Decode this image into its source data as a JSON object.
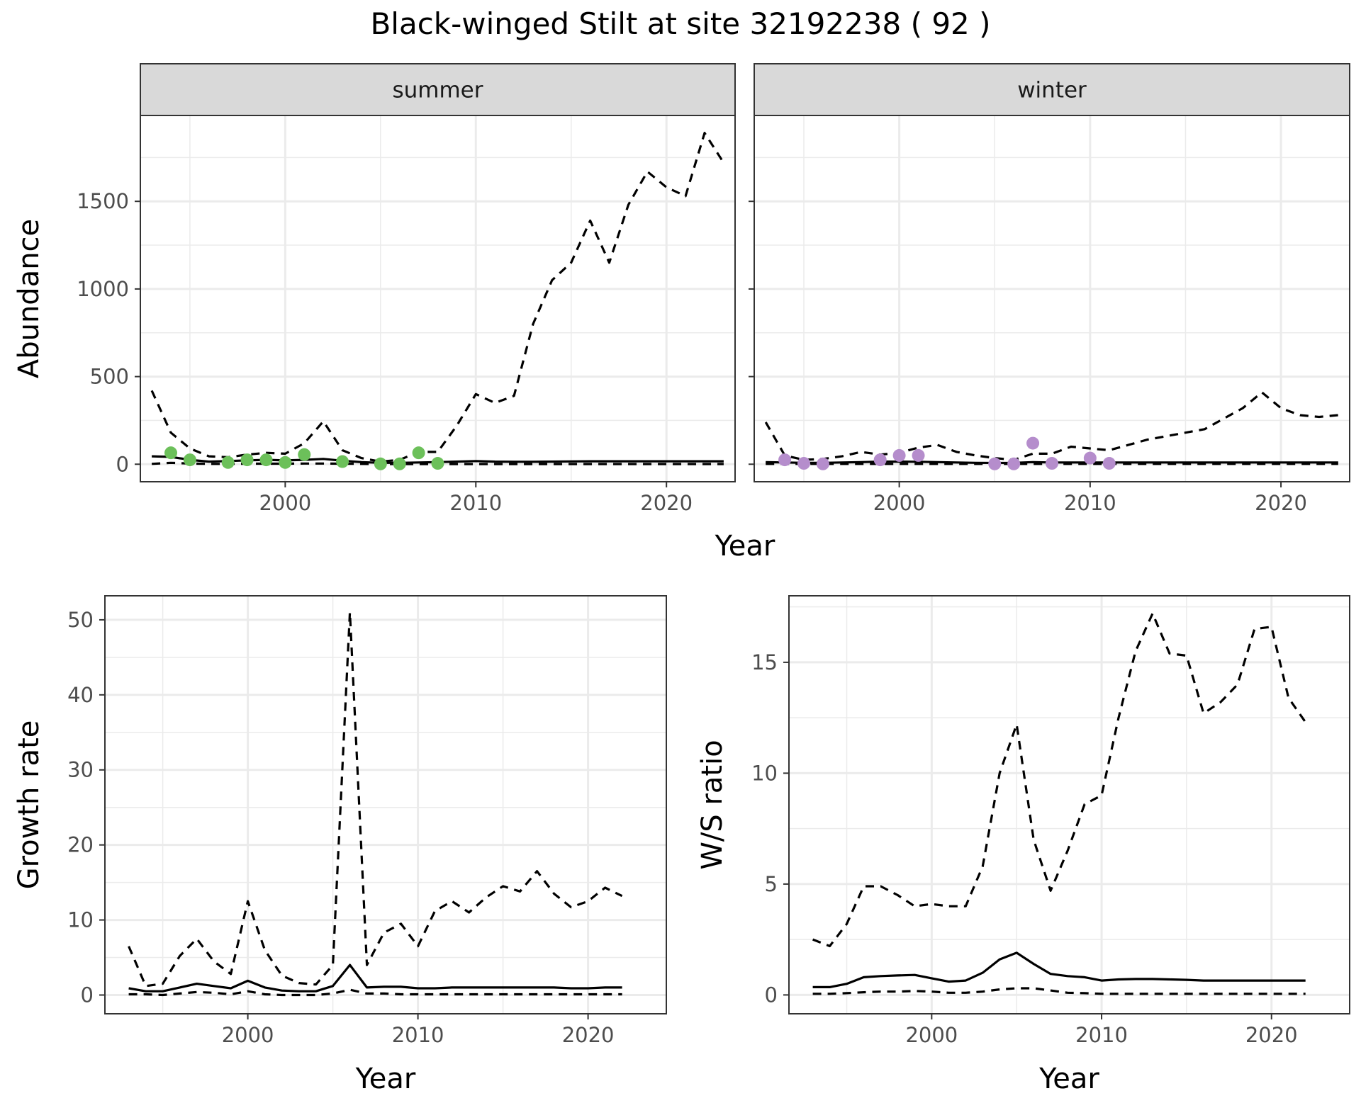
{
  "title": "Black-winged Stilt at site 32192238 ( 92 )",
  "colors": {
    "summer_points": "#6cc05a",
    "winter_points": "#b58dcc",
    "line": "#000000",
    "strip_fill": "#d9d9d9",
    "grid": "#ebebeb"
  },
  "chart_data": [
    {
      "type": "line",
      "facet": "summer",
      "xlabel": "Year",
      "ylabel": "Abundance",
      "xlim": [
        1992.4,
        2023.6
      ],
      "ylim": [
        -100,
        1990
      ],
      "xticks": [
        2000,
        2010,
        2020
      ],
      "yticks": [
        0,
        500,
        1000,
        1500
      ],
      "grid": true,
      "series": [
        {
          "style": "solid",
          "x": [
            1993,
            1994,
            1995,
            1996,
            1997,
            1998,
            1999,
            2000,
            2001,
            2002,
            2003,
            2004,
            2005,
            2006,
            2007,
            2008,
            2009,
            2010,
            2011,
            2012,
            2013,
            2014,
            2015,
            2016,
            2017,
            2018,
            2019,
            2020,
            2021,
            2022,
            2023
          ],
          "values": [
            45,
            42,
            25,
            15,
            18,
            22,
            25,
            22,
            25,
            30,
            20,
            12,
            8,
            8,
            10,
            12,
            15,
            18,
            15,
            14,
            14,
            15,
            16,
            17,
            17,
            17,
            17,
            17,
            17,
            17,
            17
          ]
        },
        {
          "style": "dashed-upper",
          "x": [
            1993,
            1994,
            1995,
            1996,
            1997,
            1998,
            1999,
            2000,
            2001,
            2002,
            2003,
            2004,
            2005,
            2006,
            2007,
            2008,
            2009,
            2010,
            2011,
            2012,
            2013,
            2014,
            2015,
            2016,
            2017,
            2018,
            2019,
            2020,
            2021,
            2022,
            2023
          ],
          "values": [
            420,
            180,
            90,
            45,
            40,
            55,
            65,
            60,
            120,
            245,
            80,
            35,
            15,
            25,
            70,
            70,
            220,
            400,
            350,
            390,
            800,
            1050,
            1150,
            1390,
            1150,
            1480,
            1670,
            1580,
            1530,
            1890,
            1720
          ]
        },
        {
          "style": "dashed-lower",
          "x": [
            1993,
            1994,
            1995,
            1996,
            1997,
            1998,
            1999,
            2000,
            2001,
            2002,
            2003,
            2004,
            2005,
            2006,
            2007,
            2008,
            2009,
            2010,
            2011,
            2012,
            2013,
            2014,
            2015,
            2016,
            2017,
            2018,
            2019,
            2020,
            2021,
            2022,
            2023
          ],
          "values": [
            2,
            8,
            4,
            2,
            2,
            3,
            3,
            3,
            4,
            4,
            3,
            2,
            1,
            1,
            1,
            1,
            1,
            1,
            1,
            1,
            1,
            1,
            1,
            1,
            1,
            1,
            1,
            1,
            1,
            1,
            1
          ]
        }
      ],
      "points": {
        "x": [
          1994,
          1995,
          1997,
          1998,
          1999,
          2000,
          2001,
          2003,
          2005,
          2006,
          2007,
          2008
        ],
        "values": [
          65,
          25,
          10,
          25,
          25,
          10,
          55,
          15,
          2,
          2,
          65,
          5
        ]
      }
    },
    {
      "type": "line",
      "facet": "winter",
      "xlabel": "Year",
      "ylabel": "Abundance",
      "xlim": [
        1992.4,
        2023.6
      ],
      "ylim": [
        -100,
        1990
      ],
      "xticks": [
        2000,
        2010,
        2020
      ],
      "yticks": [
        0,
        500,
        1000,
        1500
      ],
      "grid": true,
      "series": [
        {
          "style": "solid",
          "x": [
            1993,
            1994,
            1995,
            1996,
            1997,
            1998,
            1999,
            2000,
            2001,
            2002,
            2003,
            2004,
            2005,
            2006,
            2007,
            2008,
            2009,
            2010,
            2011,
            2012,
            2013,
            2014,
            2015,
            2016,
            2017,
            2018,
            2019,
            2020,
            2021,
            2022,
            2023
          ],
          "values": [
            12,
            10,
            8,
            8,
            10,
            12,
            15,
            15,
            14,
            12,
            10,
            8,
            7,
            8,
            12,
            10,
            10,
            10,
            10,
            10,
            10,
            10,
            10,
            10,
            10,
            10,
            10,
            10,
            10,
            10,
            10
          ]
        },
        {
          "style": "dashed-upper",
          "x": [
            1993,
            1994,
            1995,
            1996,
            1997,
            1998,
            1999,
            2000,
            2001,
            2002,
            2003,
            2004,
            2005,
            2006,
            2007,
            2008,
            2009,
            2010,
            2011,
            2012,
            2013,
            2014,
            2015,
            2016,
            2017,
            2018,
            2019,
            2020,
            2021,
            2022,
            2023
          ],
          "values": [
            240,
            50,
            25,
            30,
            45,
            70,
            55,
            65,
            95,
            110,
            70,
            50,
            35,
            25,
            60,
            60,
            100,
            90,
            80,
            110,
            140,
            160,
            180,
            200,
            260,
            320,
            410,
            320,
            280,
            270,
            280
          ]
        },
        {
          "style": "dashed-lower",
          "x": [
            1993,
            1994,
            1995,
            1996,
            1997,
            1998,
            1999,
            2000,
            2001,
            2002,
            2003,
            2004,
            2005,
            2006,
            2007,
            2008,
            2009,
            2010,
            2011,
            2012,
            2013,
            2014,
            2015,
            2016,
            2017,
            2018,
            2019,
            2020,
            2021,
            2022,
            2023
          ],
          "values": [
            2,
            2,
            2,
            2,
            2,
            2,
            2,
            2,
            2,
            2,
            2,
            2,
            2,
            2,
            2,
            2,
            2,
            2,
            2,
            2,
            2,
            2,
            2,
            2,
            2,
            2,
            2,
            2,
            2,
            2,
            2
          ]
        }
      ],
      "points": {
        "x": [
          1994,
          1995,
          1996,
          1999,
          2000,
          2001,
          2005,
          2006,
          2007,
          2008,
          2010,
          2011
        ],
        "values": [
          25,
          5,
          2,
          25,
          50,
          50,
          2,
          2,
          120,
          5,
          35,
          5
        ]
      }
    },
    {
      "type": "line",
      "xlabel": "Year",
      "ylabel": "Growth rate",
      "xlim": [
        1991.6,
        2024.6
      ],
      "ylim": [
        -2.5,
        53.2
      ],
      "xticks": [
        2000,
        2010,
        2020
      ],
      "yticks": [
        0,
        10,
        20,
        30,
        40,
        50
      ],
      "grid": true,
      "series": [
        {
          "style": "solid",
          "x": [
            1993,
            1994,
            1995,
            1996,
            1997,
            1998,
            1999,
            2000,
            2001,
            2002,
            2003,
            2004,
            2005,
            2006,
            2007,
            2008,
            2009,
            2010,
            2011,
            2012,
            2013,
            2014,
            2015,
            2016,
            2017,
            2018,
            2019,
            2020,
            2021,
            2022
          ],
          "values": [
            0.9,
            0.5,
            0.5,
            1.0,
            1.5,
            1.2,
            0.9,
            1.9,
            1.0,
            0.6,
            0.5,
            0.5,
            1.2,
            4.0,
            1.0,
            1.1,
            1.1,
            0.9,
            0.9,
            1.0,
            1.0,
            1.0,
            1.0,
            1.0,
            1.0,
            1.0,
            0.9,
            0.9,
            1.0,
            1.0
          ]
        },
        {
          "style": "dashed-upper",
          "x": [
            1993,
            1994,
            1995,
            1996,
            1997,
            1998,
            1999,
            2000,
            2001,
            2002,
            2003,
            2004,
            2005,
            2006,
            2007,
            2008,
            2009,
            2010,
            2011,
            2012,
            2013,
            2014,
            2015,
            2016,
            2017,
            2018,
            2019,
            2020,
            2021,
            2022
          ],
          "values": [
            6.5,
            1.2,
            1.5,
            5.2,
            7.5,
            4.5,
            2.8,
            12.5,
            6.0,
            2.6,
            1.6,
            1.4,
            4.0,
            51.0,
            4.0,
            8.3,
            9.5,
            6.5,
            11.2,
            12.5,
            11.0,
            13.0,
            14.5,
            13.8,
            16.5,
            13.5,
            11.7,
            12.5,
            14.3,
            13.2
          ]
        },
        {
          "style": "dashed-lower",
          "x": [
            1993,
            1994,
            1995,
            1996,
            1997,
            1998,
            1999,
            2000,
            2001,
            2002,
            2003,
            2004,
            2005,
            2006,
            2007,
            2008,
            2009,
            2010,
            2011,
            2012,
            2013,
            2014,
            2015,
            2016,
            2017,
            2018,
            2019,
            2020,
            2021,
            2022
          ],
          "values": [
            0.1,
            0.1,
            0.0,
            0.2,
            0.4,
            0.3,
            0.1,
            0.5,
            0.1,
            0.0,
            0.0,
            0.0,
            0.2,
            0.7,
            0.2,
            0.2,
            0.1,
            0.1,
            0.1,
            0.1,
            0.1,
            0.1,
            0.1,
            0.1,
            0.1,
            0.1,
            0.1,
            0.1,
            0.1,
            0.1
          ]
        }
      ]
    },
    {
      "type": "line",
      "xlabel": "Year",
      "ylabel": "W/S ratio",
      "xlim": [
        1991.6,
        2024.6
      ],
      "ylim": [
        -0.85,
        18.0
      ],
      "xticks": [
        2000,
        2010,
        2020
      ],
      "yticks": [
        0,
        5,
        10,
        15
      ],
      "grid": true,
      "series": [
        {
          "style": "solid",
          "x": [
            1993,
            1994,
            1995,
            1996,
            1997,
            1998,
            1999,
            2000,
            2001,
            2002,
            2003,
            2004,
            2005,
            2006,
            2007,
            2008,
            2009,
            2010,
            2011,
            2012,
            2013,
            2014,
            2015,
            2016,
            2017,
            2018,
            2019,
            2020,
            2021,
            2022
          ],
          "values": [
            0.35,
            0.35,
            0.5,
            0.8,
            0.85,
            0.88,
            0.9,
            0.75,
            0.6,
            0.65,
            1.0,
            1.6,
            1.9,
            1.4,
            0.95,
            0.85,
            0.8,
            0.65,
            0.7,
            0.72,
            0.72,
            0.7,
            0.68,
            0.65,
            0.65,
            0.65,
            0.65,
            0.65,
            0.65,
            0.65
          ]
        },
        {
          "style": "dashed-upper",
          "x": [
            1993,
            1994,
            1995,
            1996,
            1997,
            1998,
            1999,
            2000,
            2001,
            2002,
            2003,
            2004,
            2005,
            2006,
            2007,
            2008,
            2009,
            2010,
            2011,
            2012,
            2013,
            2014,
            2015,
            2016,
            2017,
            2018,
            2019,
            2020,
            2021,
            2022
          ],
          "values": [
            2.5,
            2.2,
            3.2,
            4.9,
            4.9,
            4.5,
            4.0,
            4.1,
            4.0,
            4.0,
            5.8,
            10.0,
            12.2,
            7.0,
            4.7,
            6.5,
            8.6,
            9.0,
            12.5,
            15.5,
            17.2,
            15.4,
            15.3,
            12.7,
            13.2,
            14.0,
            16.5,
            16.6,
            13.4,
            12.3
          ]
        },
        {
          "style": "dashed-lower",
          "x": [
            1993,
            1994,
            1995,
            1996,
            1997,
            1998,
            1999,
            2000,
            2001,
            2002,
            2003,
            2004,
            2005,
            2006,
            2007,
            2008,
            2009,
            2010,
            2011,
            2012,
            2013,
            2014,
            2015,
            2016,
            2017,
            2018,
            2019,
            2020,
            2021,
            2022
          ],
          "values": [
            0.05,
            0.05,
            0.08,
            0.12,
            0.15,
            0.15,
            0.18,
            0.15,
            0.1,
            0.1,
            0.15,
            0.25,
            0.3,
            0.3,
            0.2,
            0.1,
            0.08,
            0.05,
            0.05,
            0.05,
            0.05,
            0.05,
            0.05,
            0.05,
            0.05,
            0.05,
            0.05,
            0.05,
            0.05,
            0.05
          ]
        }
      ]
    }
  ]
}
